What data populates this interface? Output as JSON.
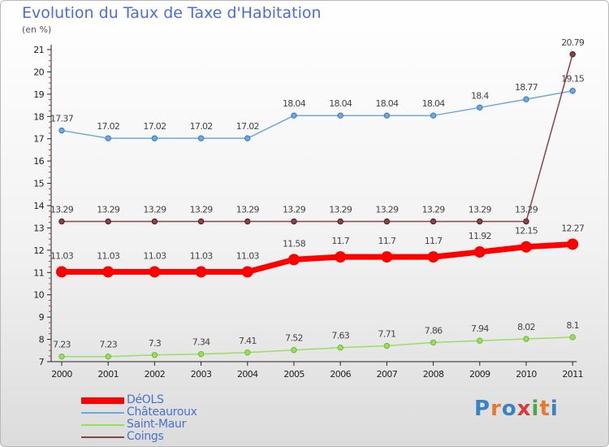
{
  "header": {
    "title": "Evolution du Taux de Taxe d'Habitation",
    "subtitle": "(en %)"
  },
  "chart_data": {
    "type": "line",
    "title": "Evolution du Taux de Taxe d'Habitation",
    "ylabel": "(en %)",
    "xlabel": "",
    "x": [
      "2000",
      "2001",
      "2002",
      "2003",
      "2004",
      "2005",
      "2006",
      "2007",
      "2008",
      "2009",
      "2010",
      "2011"
    ],
    "ylim": [
      7,
      21
    ],
    "yticks": [
      7,
      8,
      9,
      10,
      11,
      12,
      13,
      14,
      15,
      16,
      17,
      18,
      19,
      20,
      21
    ],
    "grid": false,
    "legend_position": "bottom-left",
    "series": [
      {
        "name": "DéOLS",
        "color": "#ff0000",
        "values": [
          11.03,
          11.03,
          11.03,
          11.03,
          11.03,
          11.58,
          11.7,
          11.7,
          11.7,
          11.92,
          12.15,
          12.27
        ],
        "labels": [
          "11.03",
          "11.03",
          "11.03",
          "11.03",
          "11.03",
          "11.58",
          "11.7",
          "11.7",
          "11.7",
          "11.92",
          "12.15",
          "12.27"
        ]
      },
      {
        "name": "Châteauroux",
        "color": "#6fa8dc",
        "values": [
          17.37,
          17.02,
          17.02,
          17.02,
          17.02,
          18.04,
          18.04,
          18.04,
          18.04,
          18.4,
          18.77,
          19.15
        ],
        "labels": [
          "17.37",
          "17.02",
          "17.02",
          "17.02",
          "17.02",
          "18.04",
          "18.04",
          "18.04",
          "18.04",
          "18.4",
          "18.77",
          "19.15"
        ]
      },
      {
        "name": "Saint-Maur",
        "color": "#99dd66",
        "values": [
          7.23,
          7.23,
          7.3,
          7.34,
          7.41,
          7.52,
          7.63,
          7.71,
          7.86,
          7.94,
          8.02,
          8.1
        ],
        "labels": [
          "7.23",
          "7.23",
          "7.3",
          "7.34",
          "7.41",
          "7.52",
          "7.63",
          "7.71",
          "7.86",
          "7.94",
          "8.02",
          "8.1"
        ]
      },
      {
        "name": "Coings",
        "color": "#884444",
        "values": [
          13.29,
          13.29,
          13.29,
          13.29,
          13.29,
          13.29,
          13.29,
          13.29,
          13.29,
          13.29,
          13.29,
          20.79
        ],
        "labels": [
          "13.29",
          "13.29",
          "13.29",
          "13.29",
          "13.29",
          "13.29",
          "13.29",
          "13.29",
          "13.29",
          "13.29",
          "13.29",
          "20.79"
        ]
      }
    ]
  },
  "branding": {
    "logo_text": "Proxiti",
    "logo_colors": [
      "#3b82c4",
      "#e8792b",
      "#3b82c4",
      "#d93a3a",
      "#4aa84a",
      "#e8792b",
      "#3b82c4"
    ]
  }
}
